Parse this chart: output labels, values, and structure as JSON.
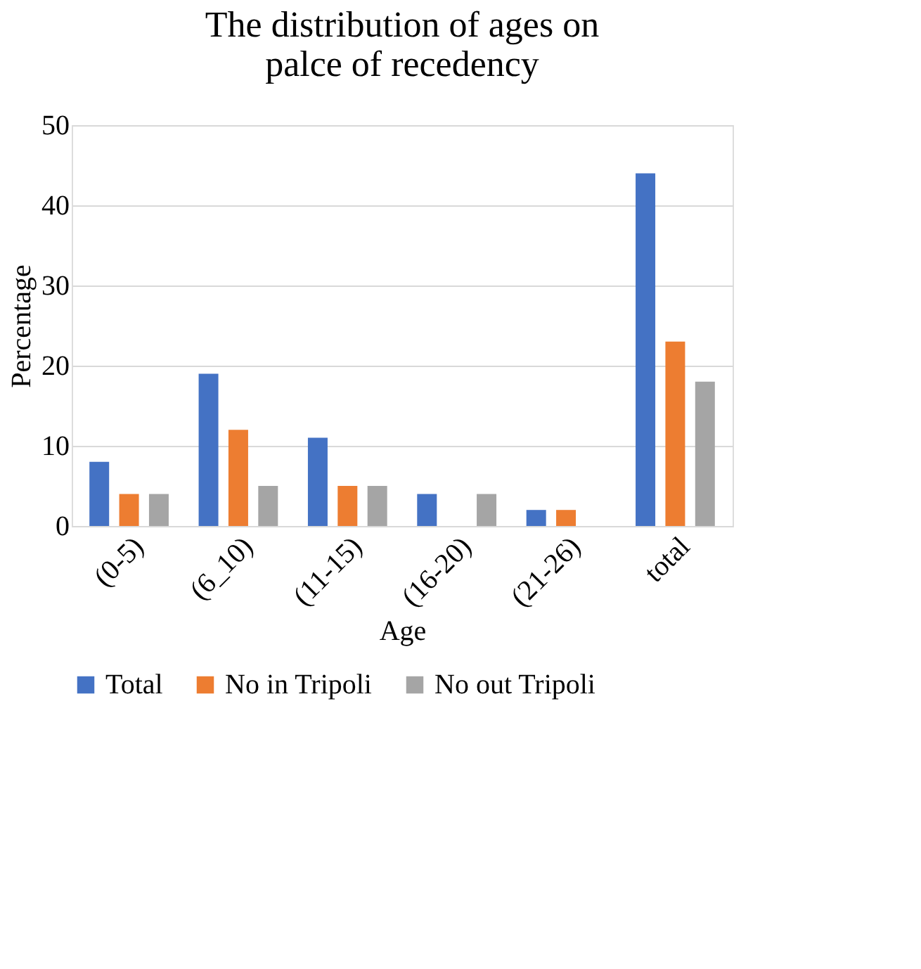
{
  "chart_data": {
    "type": "bar",
    "title": "The distribution of ages on palce of recedency",
    "xlabel": "Age",
    "ylabel": "Percentage",
    "categories": [
      "(0-5)",
      "(6_10)",
      "(11-15)",
      "(16-20)",
      "(21-26)",
      "total"
    ],
    "series": [
      {
        "name": "Total",
        "color": "#4472c4",
        "values": [
          8,
          19,
          11,
          4,
          2,
          44
        ]
      },
      {
        "name": "No in Tripoli",
        "color": "#ed7d31",
        "values": [
          4,
          12,
          5,
          0,
          2,
          23
        ]
      },
      {
        "name": "No out Tripoli",
        "color": "#a5a5a5",
        "values": [
          4,
          5,
          5,
          4,
          0,
          18
        ]
      }
    ],
    "ylim": [
      0,
      50
    ],
    "yticks": [
      0,
      10,
      20,
      30,
      40,
      50
    ],
    "grid": "y",
    "legend": "bottom"
  }
}
